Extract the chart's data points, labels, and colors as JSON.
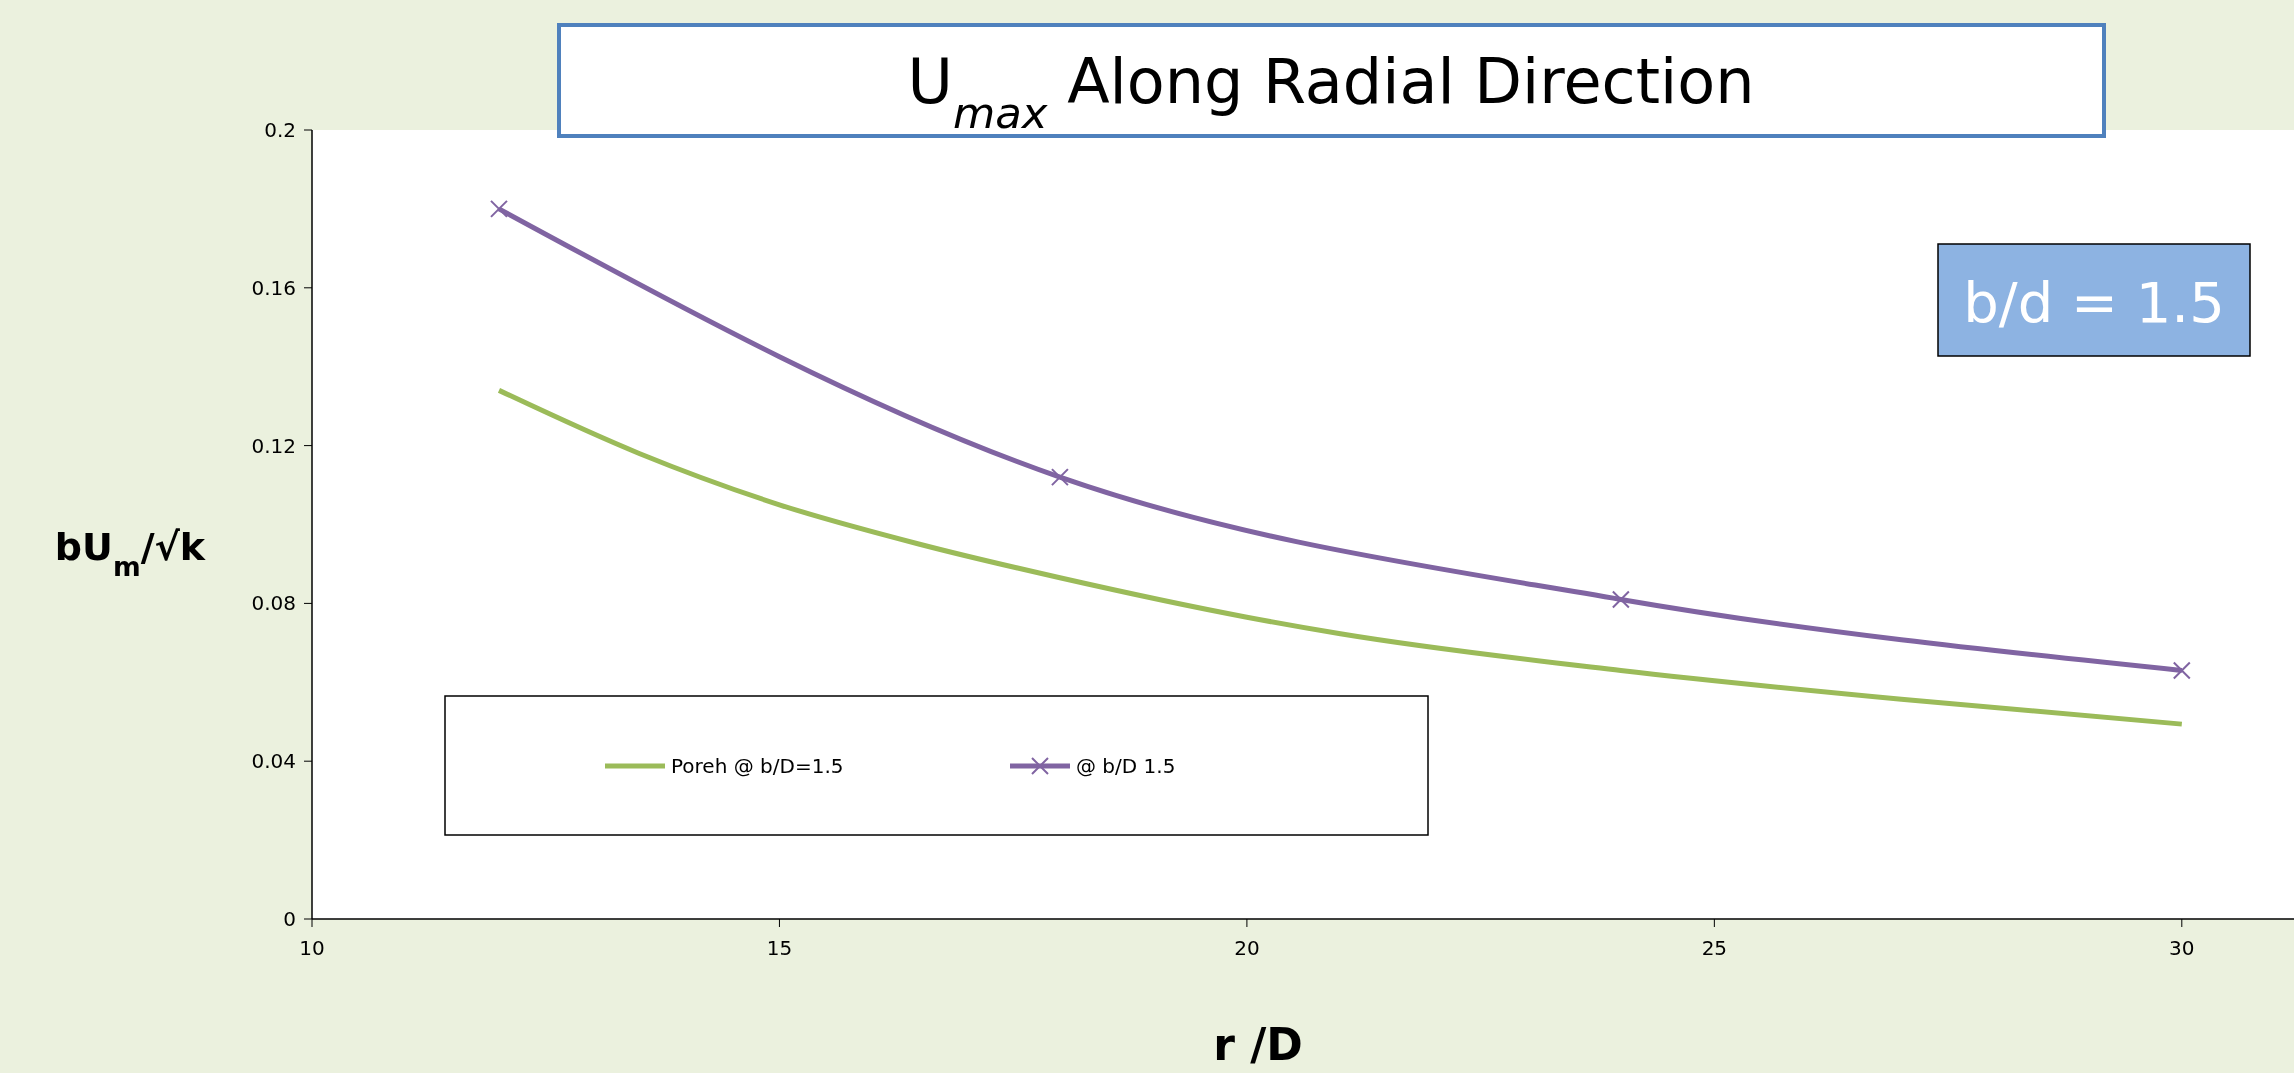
{
  "chart_data": {
    "type": "line",
    "title": "U$_{max}$ Along Radial Direction",
    "xlabel": "r /D",
    "ylabel": "bU$_{m}$/√k",
    "xlim": [
      10,
      31.2
    ],
    "xticks": [
      10,
      15,
      20,
      25,
      30
    ],
    "ylim": [
      0,
      0.2
    ],
    "yticks": [
      0,
      0.04,
      0.08,
      0.12,
      0.16,
      0.2
    ],
    "grid": false,
    "legend": "bottom left",
    "annotations": [
      "b/d = 1.5"
    ],
    "series": [
      {
        "name": "Poreh @ b/D=1.5",
        "color": "#9bbb59",
        "marker": "none",
        "x": [
          12,
          13.5,
          15,
          16.5,
          18,
          20,
          21,
          24,
          27,
          30
        ],
        "values": [
          0.134,
          0.118,
          0.105,
          0.095,
          0.0865,
          0.0765,
          0.0723,
          0.063,
          0.0557,
          0.0494
        ]
      },
      {
        "name": "@ b/D 1.5",
        "color": "#8064a2",
        "marker": "cross",
        "x": [
          12,
          18,
          24,
          30
        ],
        "values": [
          0.18,
          0.112,
          0.081,
          0.063
        ]
      }
    ]
  }
}
